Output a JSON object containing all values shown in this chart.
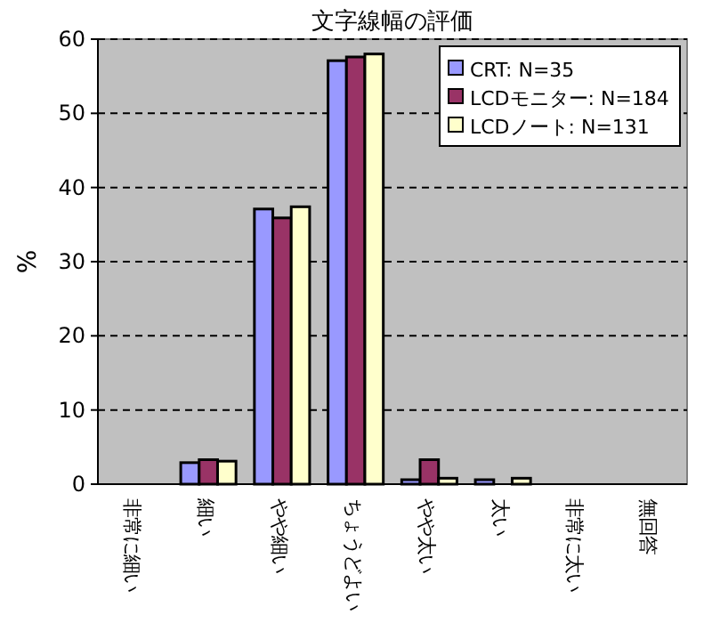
{
  "chart_data": {
    "type": "bar",
    "title": "文字線幅の評価",
    "ylabel": "%",
    "categories": [
      "非常に細い",
      "細い",
      "やや細い",
      "ちょうどよい",
      "やや太い",
      "太い",
      "非常に太い",
      "無回答"
    ],
    "series": [
      {
        "name": "CRT: N=35",
        "color": "#9999ff",
        "values": [
          0,
          2.9,
          37.1,
          57.1,
          0.6,
          0.6,
          0,
          0
        ]
      },
      {
        "name": "LCDモニター: N=184",
        "color": "#993366",
        "values": [
          0,
          3.3,
          35.9,
          57.6,
          3.3,
          0,
          0,
          0
        ]
      },
      {
        "name": "LCDノート: N=131",
        "color": "#ffffcc",
        "values": [
          0,
          3.1,
          37.4,
          58.0,
          0.8,
          0.8,
          0,
          0
        ]
      }
    ],
    "ylim": [
      0,
      60
    ],
    "yticks": [
      0,
      10,
      20,
      30,
      40,
      50,
      60
    ],
    "grid": "y",
    "legend": "top right"
  }
}
